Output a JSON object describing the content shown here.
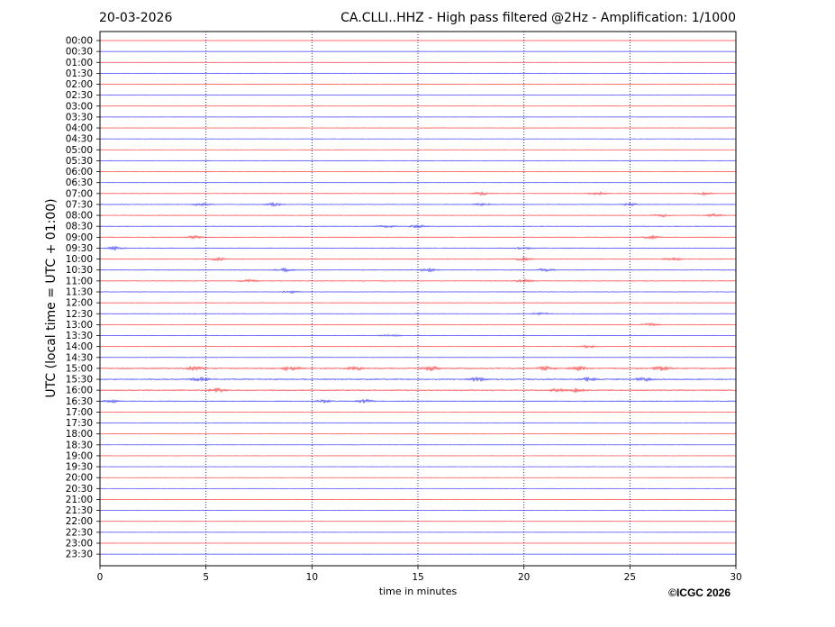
{
  "header": {
    "date": "20-03-2026",
    "title": "CA.CLLI..HHZ - High pass filtered @2Hz - Amplification: 1/1000"
  },
  "footer": {
    "copyright": "©ICGC 2026"
  },
  "colors": {
    "trace_a": "#ff0000",
    "trace_b": "#0000ff",
    "axis": "#000000",
    "grid": "#00008b"
  },
  "chart_data": {
    "type": "line",
    "title": "CA.CLLI..HHZ - High pass filtered @2Hz - Amplification: 1/1000",
    "xlabel": "time in minutes",
    "ylabel": "UTC (local time = UTC + 01:00)",
    "xlim": [
      0,
      30
    ],
    "x_ticks": [
      "0",
      "5",
      "10",
      "15",
      "20",
      "25",
      "30"
    ],
    "vertical_gridlines_at": [
      5,
      10,
      15,
      20,
      25
    ],
    "grid_style": "dotted",
    "row_labels": [
      "00:00",
      "00:30",
      "01:00",
      "01:30",
      "02:00",
      "02:30",
      "03:00",
      "03:30",
      "04:00",
      "04:30",
      "05:00",
      "05:30",
      "06:00",
      "06:30",
      "07:00",
      "07:30",
      "08:00",
      "08:30",
      "09:00",
      "09:30",
      "10:00",
      "10:30",
      "11:00",
      "11:30",
      "12:00",
      "12:30",
      "13:00",
      "13:30",
      "14:00",
      "14:30",
      "15:00",
      "15:30",
      "16:00",
      "16:30",
      "17:00",
      "17:30",
      "18:00",
      "18:30",
      "19:00",
      "19:30",
      "20:00",
      "20:30",
      "21:00",
      "21:30",
      "22:00",
      "22:30",
      "23:00",
      "23:30"
    ],
    "row_colors": [
      "red",
      "blue",
      "red",
      "blue",
      "red",
      "blue",
      "red",
      "blue",
      "red",
      "blue",
      "red",
      "blue",
      "red",
      "blue",
      "red",
      "blue",
      "red",
      "blue",
      "red",
      "blue",
      "red",
      "blue",
      "red",
      "blue",
      "red",
      "blue",
      "red",
      "blue",
      "red",
      "blue",
      "red",
      "blue",
      "red",
      "blue",
      "red",
      "blue",
      "red",
      "blue",
      "red",
      "blue",
      "red",
      "blue",
      "red",
      "blue",
      "red",
      "blue",
      "red",
      "blue"
    ],
    "activity_level": [
      0.1,
      0.1,
      0.15,
      0.2,
      0.15,
      0.1,
      0.1,
      0.15,
      0.1,
      0.1,
      0.1,
      0.25,
      0.25,
      0.25,
      0.35,
      0.4,
      0.35,
      0.4,
      0.5,
      0.5,
      0.45,
      0.45,
      0.4,
      0.3,
      0.25,
      0.3,
      0.25,
      0.35,
      0.3,
      0.3,
      0.9,
      0.8,
      0.75,
      0.55,
      0.2,
      0.15,
      0.15,
      0.15,
      0.1,
      0.1,
      0.1,
      0.1,
      0.1,
      0.1,
      0.1,
      0.1,
      0.1,
      0.1
    ],
    "events": [
      {
        "row": 14,
        "minutes": [
          18.0,
          23.5,
          28.5
        ]
      },
      {
        "row": 15,
        "minutes": [
          4.8,
          8.2,
          18.0,
          25.0
        ]
      },
      {
        "row": 16,
        "minutes": [
          26.5,
          29.0
        ]
      },
      {
        "row": 17,
        "minutes": [
          13.5,
          15.0
        ]
      },
      {
        "row": 18,
        "minutes": [
          4.5,
          26.0
        ]
      },
      {
        "row": 19,
        "minutes": [
          20.0,
          0.7
        ]
      },
      {
        "row": 20,
        "minutes": [
          5.5,
          20.0,
          27.0
        ]
      },
      {
        "row": 21,
        "minutes": [
          8.7,
          15.5,
          21.0
        ]
      },
      {
        "row": 22,
        "minutes": [
          7.0,
          20.0
        ]
      },
      {
        "row": 23,
        "minutes": [
          9.0
        ]
      },
      {
        "row": 25,
        "minutes": [
          20.8
        ]
      },
      {
        "row": 26,
        "minutes": [
          26.0
        ]
      },
      {
        "row": 27,
        "minutes": [
          13.7
        ]
      },
      {
        "row": 28,
        "minutes": [
          23.0
        ]
      },
      {
        "row": 30,
        "minutes": [
          4.5,
          9.0,
          12.0,
          15.6,
          21.0,
          22.5,
          26.5
        ]
      },
      {
        "row": 31,
        "minutes": [
          4.7,
          17.8,
          23.0,
          25.7
        ]
      },
      {
        "row": 32,
        "minutes": [
          5.5,
          21.5,
          22.5
        ]
      },
      {
        "row": 33,
        "minutes": [
          0.5,
          10.5,
          12.5
        ]
      }
    ]
  }
}
